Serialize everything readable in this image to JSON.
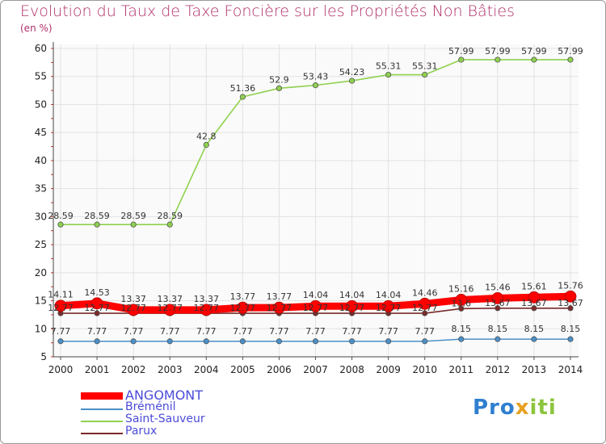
{
  "title": "Evolution du Taux de Taxe Foncière sur les Propriétés Non Bâties",
  "subtitle": "(en %)",
  "chart_data": {
    "type": "line",
    "title": "Evolution du Taux de Taxe Foncière sur les Propriétés Non Bâties",
    "ylabel": "(en %)",
    "x": [
      "2000",
      "2001",
      "2002",
      "2003",
      "2004",
      "2005",
      "2006",
      "2007",
      "2008",
      "2009",
      "2010",
      "2011",
      "2012",
      "2013",
      "2014"
    ],
    "ylim": [
      5,
      60
    ],
    "yticks": [
      5,
      10,
      15,
      20,
      25,
      30,
      35,
      40,
      45,
      50,
      55,
      60
    ],
    "grid": true,
    "series": [
      {
        "name": "ANGOMONT",
        "color": "#ff0000",
        "values": [
          14.11,
          14.53,
          13.37,
          13.37,
          13.37,
          13.77,
          13.77,
          14.04,
          14.04,
          14.04,
          14.46,
          15.16,
          15.46,
          15.61,
          15.76
        ],
        "labels": [
          "14.11",
          "14.53",
          "13.37",
          "13.37",
          "13.37",
          "13.77",
          "13.77",
          "14.04",
          "14.04",
          "14.04",
          "14.46",
          "15.16",
          "15.46",
          "15.61",
          "15.76"
        ]
      },
      {
        "name": "Bréménil",
        "color": "#4a90c8",
        "values": [
          7.77,
          7.77,
          7.77,
          7.77,
          7.77,
          7.77,
          7.77,
          7.77,
          7.77,
          7.77,
          7.77,
          8.15,
          8.15,
          8.15,
          8.15
        ],
        "labels": [
          "7.77",
          "7.77",
          "7.77",
          "7.77",
          "7.77",
          "7.77",
          "7.77",
          "7.77",
          "7.77",
          "7.77",
          "7.77",
          "8.15",
          "8.15",
          "8.15",
          "8.15"
        ]
      },
      {
        "name": "Saint-Sauveur",
        "color": "#8fd14f",
        "values": [
          28.59,
          28.59,
          28.59,
          28.59,
          42.8,
          51.36,
          52.9,
          53.43,
          54.23,
          55.31,
          55.31,
          57.99,
          57.99,
          57.99,
          57.99
        ],
        "labels": [
          "28.59",
          "28.59",
          "28.59",
          "28.59",
          "42.8",
          "51.36",
          "52.9",
          "53.43",
          "54.23",
          "55.31",
          "55.31",
          "57.99",
          "57.99",
          "57.99",
          "57.99"
        ]
      },
      {
        "name": "Parux",
        "color": "#7a2a2a",
        "values": [
          12.77,
          12.77,
          12.77,
          12.77,
          12.77,
          12.77,
          12.77,
          12.77,
          12.77,
          12.77,
          12.77,
          13.6,
          13.67,
          13.67,
          13.67
        ],
        "labels": [
          "12.77",
          "12.77",
          "12.77",
          "12.77",
          "12.77",
          "12.77",
          "12.77",
          "12.77",
          "12.77",
          "12.77",
          "12.77",
          "13.6",
          "13.67",
          "13.67",
          "13.67"
        ]
      }
    ]
  },
  "legend": [
    {
      "name": "ANGOMONT"
    },
    {
      "name": "Bréménil"
    },
    {
      "name": "Saint-Sauveur"
    },
    {
      "name": "Parux"
    }
  ],
  "logo": {
    "parts": [
      "Pro",
      "x",
      "iti"
    ]
  }
}
